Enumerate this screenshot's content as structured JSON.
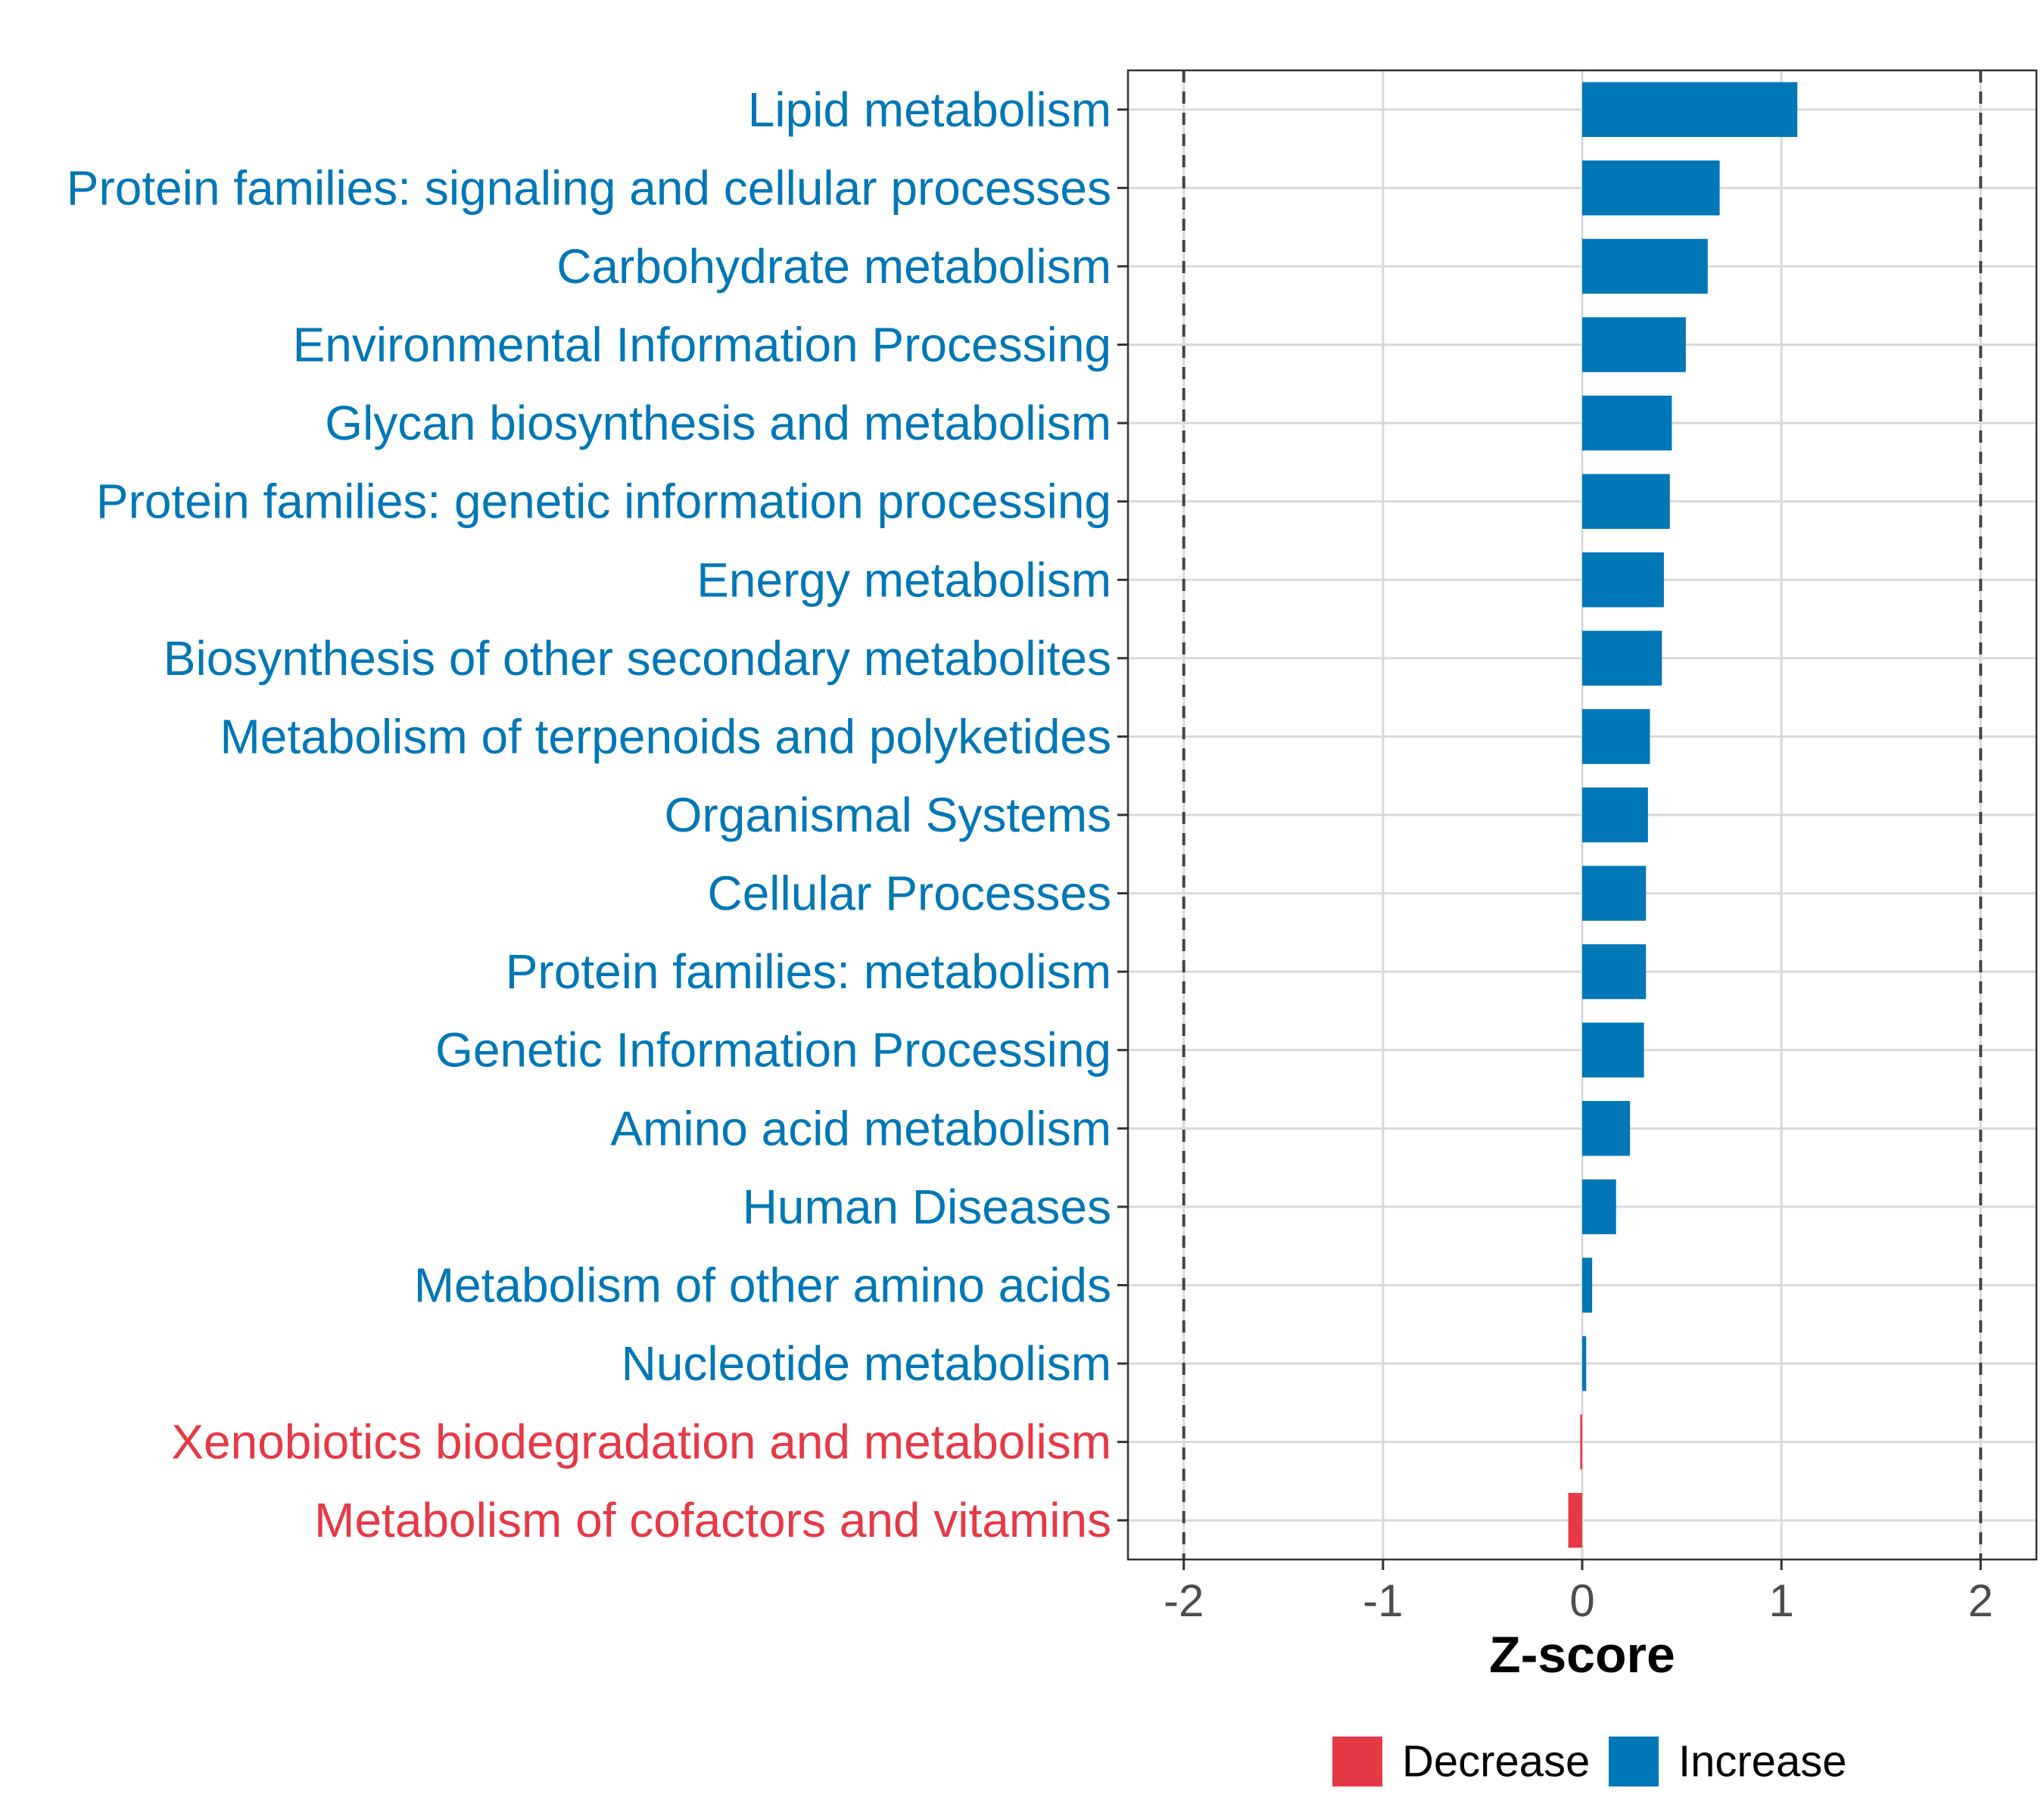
{
  "chart_data": {
    "type": "bar",
    "orientation": "horizontal",
    "title": "",
    "xlabel": "Z-score",
    "ylabel": "",
    "xlim": [
      -2.28,
      2.28
    ],
    "xticks": [
      -2,
      -1,
      0,
      1,
      2
    ],
    "xtick_labels": [
      "-2",
      "-1",
      "0",
      "1",
      "2"
    ],
    "reference_lines": [
      -2,
      2
    ],
    "grid": true,
    "legend_position": "bottom",
    "legend": [
      {
        "label": "Decrease",
        "color": "#E63946"
      },
      {
        "label": "Increase",
        "color": "#0077B6"
      }
    ],
    "categories": [
      "Lipid metabolism",
      "Protein families: signaling and cellular processes",
      "Carbohydrate metabolism",
      "Environmental Information Processing",
      "Glycan biosynthesis and metabolism",
      "Protein families: genetic information processing",
      "Energy metabolism",
      "Biosynthesis of other secondary metabolites",
      "Metabolism of terpenoids and polyketides",
      "Organismal Systems",
      "Cellular Processes",
      "Protein families: metabolism",
      "Genetic Information Processing",
      "Amino acid metabolism",
      "Human Diseases",
      "Metabolism of other amino acids",
      "Nucleotide metabolism",
      "Xenobiotics biodegradation and metabolism",
      "Metabolism of cofactors and vitamins"
    ],
    "values": [
      1.08,
      0.69,
      0.63,
      0.52,
      0.45,
      0.44,
      0.41,
      0.4,
      0.34,
      0.33,
      0.32,
      0.32,
      0.31,
      0.24,
      0.17,
      0.05,
      0.02,
      -0.01,
      -0.07
    ],
    "groups": [
      "Increase",
      "Increase",
      "Increase",
      "Increase",
      "Increase",
      "Increase",
      "Increase",
      "Increase",
      "Increase",
      "Increase",
      "Increase",
      "Increase",
      "Increase",
      "Increase",
      "Increase",
      "Increase",
      "Increase",
      "Decrease",
      "Decrease"
    ]
  }
}
